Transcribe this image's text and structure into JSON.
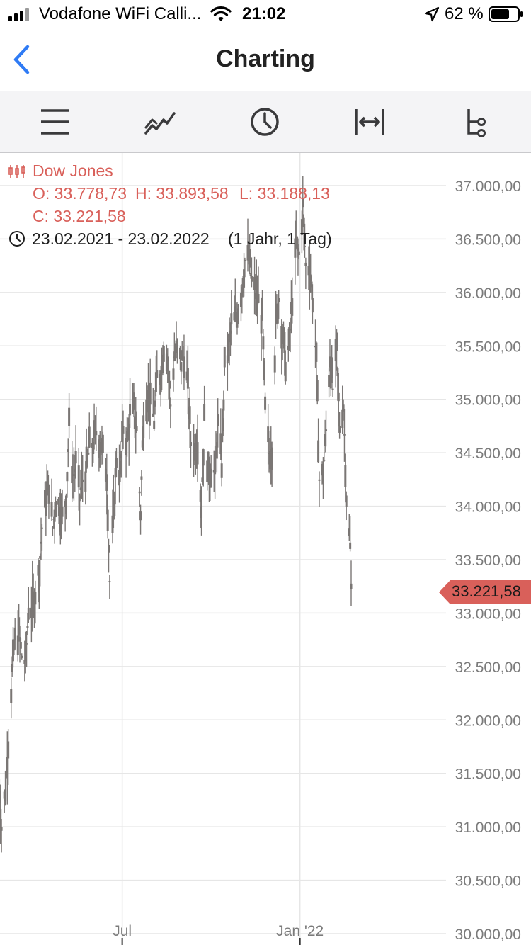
{
  "status_bar": {
    "carrier": "Vodafone WiFi Calli...",
    "time": "21:02",
    "battery": "62 %"
  },
  "nav": {
    "title": "Charting",
    "back_icon": "chevron-left-icon"
  },
  "toolbar": {
    "tools": [
      "menu-icon",
      "line-chart-icon",
      "clock-icon",
      "expand-horizontal-icon",
      "compare-tree-icon"
    ]
  },
  "info": {
    "instrument": "Dow Jones",
    "open": "O: 33.778,73",
    "high": "H: 33.893,58",
    "low": "L: 33.188,13",
    "close": "C: 33.221,58",
    "range": "23.02.2021 - 23.02.2022",
    "period": "(1 Jahr, 1 Tag)"
  },
  "current_price": "33.221,58",
  "colors": {
    "accent_red": "#d9605a",
    "ios_blue": "#2f7bf5",
    "bars": "#7a7674",
    "grid": "#e6e6e6",
    "toolbar_bg": "#f4f4f6"
  },
  "chart_data": {
    "type": "ohlc",
    "ylim": [
      30000,
      37000
    ],
    "y_ticks": [
      "37.000,00",
      "36.500,00",
      "36.000,00",
      "35.500,00",
      "35.000,00",
      "34.500,00",
      "34.000,00",
      "33.500,00",
      "33.000,00",
      "32.500,00",
      "32.000,00",
      "31.500,00",
      "31.000,00",
      "30.500,00",
      "30.000,00"
    ],
    "y_tick_values": [
      37000,
      36500,
      36000,
      35500,
      35000,
      34500,
      34000,
      33500,
      33000,
      32500,
      32000,
      31500,
      31000,
      30500,
      30000
    ],
    "x_ticks": [
      "Jul",
      "Jan '22"
    ],
    "x_tick_dates": [
      "2021-07-01",
      "2022-01-01"
    ],
    "date_range": [
      "2021-02-23",
      "2022-02-23"
    ],
    "series_close": [
      [
        "2021-02-23",
        31500
      ],
      [
        "2021-02-26",
        31000
      ],
      [
        "2021-03-02",
        31350
      ],
      [
        "2021-03-05",
        31800
      ],
      [
        "2021-03-09",
        32450
      ],
      [
        "2021-03-12",
        32750
      ],
      [
        "2021-03-16",
        32800
      ],
      [
        "2021-03-19",
        32600
      ],
      [
        "2021-03-23",
        32550
      ],
      [
        "2021-03-26",
        33050
      ],
      [
        "2021-03-30",
        33050
      ],
      [
        "2021-04-06",
        33400
      ],
      [
        "2021-04-09",
        33800
      ],
      [
        "2021-04-13",
        34050
      ],
      [
        "2021-04-16",
        34200
      ],
      [
        "2021-04-20",
        33800
      ],
      [
        "2021-04-23",
        34050
      ],
      [
        "2021-04-27",
        34000
      ],
      [
        "2021-04-30",
        33900
      ],
      [
        "2021-05-04",
        34100
      ],
      [
        "2021-05-07",
        34750
      ],
      [
        "2021-05-11",
        34250
      ],
      [
        "2021-05-14",
        34400
      ],
      [
        "2021-05-18",
        34100
      ],
      [
        "2021-05-21",
        34250
      ],
      [
        "2021-05-25",
        34350
      ],
      [
        "2021-05-28",
        34550
      ],
      [
        "2021-06-01",
        34600
      ],
      [
        "2021-06-04",
        34700
      ],
      [
        "2021-06-08",
        34600
      ],
      [
        "2021-06-11",
        34500
      ],
      [
        "2021-06-15",
        34300
      ],
      [
        "2021-06-18",
        33300
      ],
      [
        "2021-06-22",
        33900
      ],
      [
        "2021-06-25",
        34450
      ],
      [
        "2021-06-29",
        34300
      ],
      [
        "2021-07-02",
        34750
      ],
      [
        "2021-07-06",
        34600
      ],
      [
        "2021-07-09",
        34850
      ],
      [
        "2021-07-13",
        34900
      ],
      [
        "2021-07-16",
        34700
      ],
      [
        "2021-07-20",
        33950
      ],
      [
        "2021-07-23",
        34850
      ],
      [
        "2021-07-27",
        35050
      ],
      [
        "2021-07-30",
        34950
      ],
      [
        "2021-08-03",
        34800
      ],
      [
        "2021-08-06",
        35200
      ],
      [
        "2021-08-10",
        35250
      ],
      [
        "2021-08-13",
        35500
      ],
      [
        "2021-08-17",
        35400
      ],
      [
        "2021-08-20",
        34950
      ],
      [
        "2021-08-24",
        35400
      ],
      [
        "2021-08-27",
        35450
      ],
      [
        "2021-08-31",
        35350
      ],
      [
        "2021-09-03",
        35400
      ],
      [
        "2021-09-07",
        35100
      ],
      [
        "2021-09-10",
        34600
      ],
      [
        "2021-09-14",
        34550
      ],
      [
        "2021-09-17",
        34600
      ],
      [
        "2021-09-21",
        34000
      ],
      [
        "2021-09-24",
        34800
      ],
      [
        "2021-09-28",
        34300
      ],
      [
        "2021-10-01",
        34350
      ],
      [
        "2021-10-05",
        34300
      ],
      [
        "2021-10-08",
        34750
      ],
      [
        "2021-10-12",
        34400
      ],
      [
        "2021-10-15",
        35300
      ],
      [
        "2021-10-19",
        35450
      ],
      [
        "2021-10-22",
        35700
      ],
      [
        "2021-10-26",
        35750
      ],
      [
        "2021-10-29",
        35850
      ],
      [
        "2021-11-02",
        36050
      ],
      [
        "2021-11-05",
        36300
      ],
      [
        "2021-11-09",
        36300
      ],
      [
        "2021-11-12",
        36100
      ],
      [
        "2021-11-16",
        36000
      ],
      [
        "2021-11-19",
        35900
      ],
      [
        "2021-11-23",
        35750
      ],
      [
        "2021-11-26",
        34900
      ],
      [
        "2021-11-30",
        34500
      ],
      [
        "2021-12-03",
        34550
      ],
      [
        "2021-12-07",
        35700
      ],
      [
        "2021-12-10",
        35950
      ],
      [
        "2021-12-14",
        35600
      ],
      [
        "2021-12-17",
        35350
      ],
      [
        "2021-12-21",
        35500
      ],
      [
        "2021-12-24",
        35950
      ],
      [
        "2021-12-28",
        36450
      ],
      [
        "2021-12-31",
        36350
      ],
      [
        "2022-01-04",
        36800
      ],
      [
        "2022-01-07",
        36250
      ],
      [
        "2022-01-11",
        36250
      ],
      [
        "2022-01-14",
        35950
      ],
      [
        "2022-01-18",
        35350
      ],
      [
        "2022-01-21",
        34250
      ],
      [
        "2022-01-25",
        34300
      ],
      [
        "2022-01-28",
        34700
      ],
      [
        "2022-02-01",
        35400
      ],
      [
        "2022-02-04",
        35100
      ],
      [
        "2022-02-08",
        35450
      ],
      [
        "2022-02-11",
        34750
      ],
      [
        "2022-02-15",
        34950
      ],
      [
        "2022-02-18",
        34100
      ],
      [
        "2022-02-22",
        33600
      ],
      [
        "2022-02-23",
        33221.58
      ]
    ]
  }
}
